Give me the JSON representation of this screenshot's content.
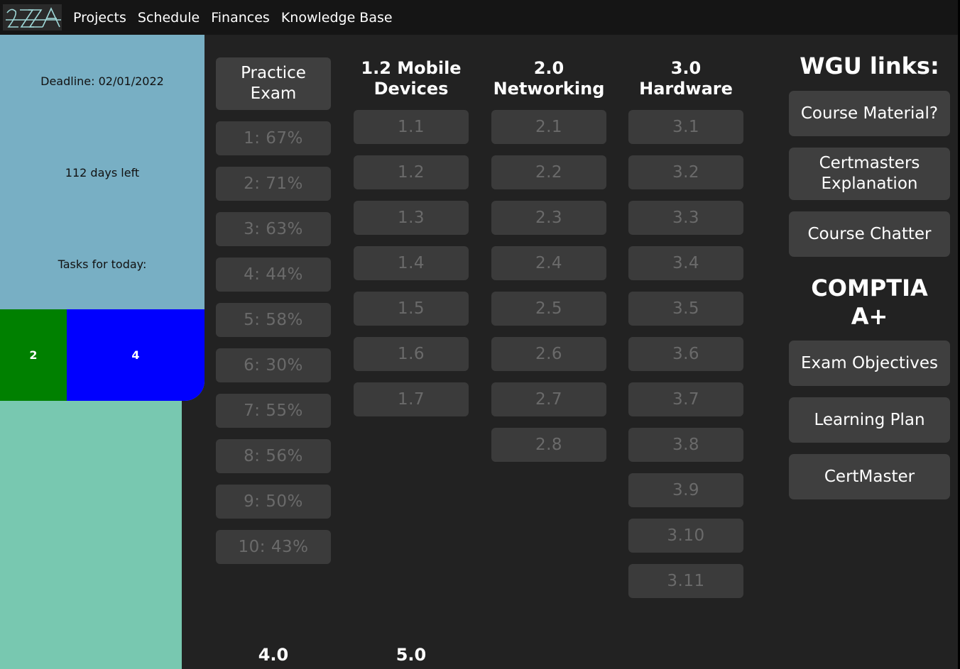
{
  "nav": {
    "logo_text": "2ZZA",
    "items": [
      "Projects",
      "Schedule",
      "Finances",
      "Knowledge Base"
    ]
  },
  "sidebar": {
    "deadline": "Deadline: 02/01/2022",
    "days_left": "112 days left",
    "tasks_label": "Tasks for today:",
    "task_counts": [
      "2",
      "4"
    ]
  },
  "practice_exam": {
    "title": "Practice Exam",
    "scores": [
      "1: 67%",
      "2: 71%",
      "3: 63%",
      "4: 44%",
      "5: 58%",
      "6: 30%",
      "7: 55%",
      "8: 56%",
      "9: 50%",
      "10: 43%"
    ]
  },
  "sections": [
    {
      "title": "1.2 Mobile Devices",
      "items": [
        "1.1",
        "1.2",
        "1.3",
        "1.4",
        "1.5",
        "1.6",
        "1.7"
      ]
    },
    {
      "title": "2.0 Networking",
      "items": [
        "2.1",
        "2.2",
        "2.3",
        "2.4",
        "2.5",
        "2.6",
        "2.7",
        "2.8"
      ]
    },
    {
      "title": "3.0 Hardware",
      "items": [
        "3.1",
        "3.2",
        "3.3",
        "3.4",
        "3.5",
        "3.6",
        "3.7",
        "3.8",
        "3.9",
        "3.10",
        "3.11"
      ]
    }
  ],
  "bottom_sections": [
    "4.0",
    "5.0"
  ],
  "links": {
    "wgu_title": "WGU links:",
    "wgu": [
      "Course Material?",
      "Certmasters Explanation",
      "Course Chatter"
    ],
    "comptia_title": "COMPTIA A+",
    "comptia": [
      "Exam Objectives",
      "Learning Plan",
      "CertMaster"
    ]
  },
  "colors": {
    "background": "#222222",
    "topbar": "#151515",
    "sidebar_top": "#78afc4",
    "sidebar_bottom": "#78c8b0",
    "task_green": "#008000",
    "task_blue": "#0000ff"
  }
}
